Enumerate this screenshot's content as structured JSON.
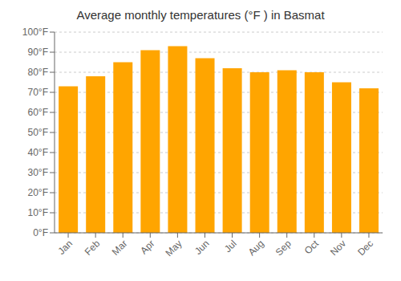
{
  "chart_data": {
    "type": "bar",
    "title": "Average monthly temperatures (°F ) in Basmat",
    "categories": [
      "Jan",
      "Feb",
      "Mar",
      "Apr",
      "May",
      "Jun",
      "Jul",
      "Aug",
      "Sep",
      "Oct",
      "Nov",
      "Dec"
    ],
    "values": [
      73,
      78,
      85,
      91,
      93,
      87,
      82,
      80,
      81,
      80,
      75,
      72
    ],
    "color": "#FFA500",
    "ylim": [
      0,
      100
    ],
    "yticks": [
      {
        "value": 0,
        "label": "0°F"
      },
      {
        "value": 10,
        "label": "10°F"
      },
      {
        "value": 20,
        "label": "20°F"
      },
      {
        "value": 30,
        "label": "30°F"
      },
      {
        "value": 40,
        "label": "40°F"
      },
      {
        "value": 50,
        "label": "50°F"
      },
      {
        "value": 60,
        "label": "60°F"
      },
      {
        "value": 70,
        "label": "70°F"
      },
      {
        "value": 80,
        "label": "80°F"
      },
      {
        "value": 90,
        "label": "90°F"
      },
      {
        "value": 100,
        "label": "100°F"
      }
    ],
    "grid": true
  }
}
